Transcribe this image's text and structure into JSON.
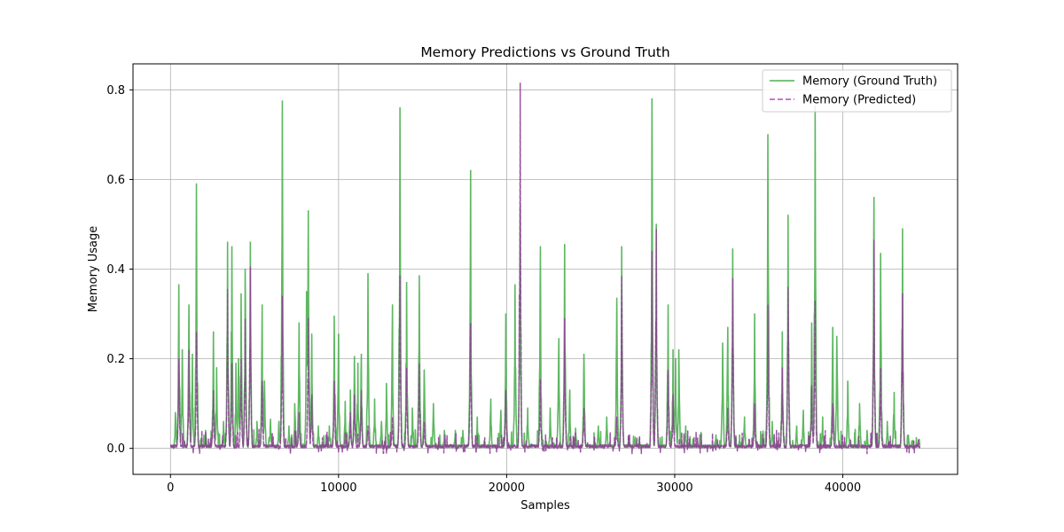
{
  "chart_data": {
    "type": "line",
    "title": "Memory Predictions vs Ground Truth",
    "xlabel": "Samples",
    "ylabel": "Memory Usage",
    "xlim": [
      -2230,
      46830
    ],
    "ylim": [
      -0.058,
      0.858
    ],
    "xticks": [
      0,
      10000,
      20000,
      30000,
      40000
    ],
    "xtick_labels": [
      "0",
      "10000",
      "20000",
      "30000",
      "40000"
    ],
    "yticks": [
      0.0,
      0.2,
      0.4,
      0.6,
      0.8
    ],
    "ytick_labels": [
      "0.0",
      "0.2",
      "0.4",
      "0.6",
      "0.8"
    ],
    "grid": true,
    "legend_position": "top-right",
    "x_range": [
      0,
      44600
    ],
    "series": [
      {
        "name": "Memory (Ground Truth)",
        "color": "#4caf50",
        "style": "solid",
        "peaks": [
          [
            300,
            0.08
          ],
          [
            500,
            0.365
          ],
          [
            700,
            0.22
          ],
          [
            1100,
            0.32
          ],
          [
            1300,
            0.21
          ],
          [
            1550,
            0.59
          ],
          [
            2100,
            0.04
          ],
          [
            2550,
            0.26
          ],
          [
            2750,
            0.18
          ],
          [
            3150,
            0.06
          ],
          [
            3400,
            0.46
          ],
          [
            3650,
            0.45
          ],
          [
            3900,
            0.19
          ],
          [
            4050,
            0.2
          ],
          [
            4200,
            0.345
          ],
          [
            4450,
            0.4
          ],
          [
            4750,
            0.46
          ],
          [
            5150,
            0.06
          ],
          [
            5450,
            0.32
          ],
          [
            5600,
            0.15
          ],
          [
            5950,
            0.065
          ],
          [
            6450,
            0.06
          ],
          [
            6650,
            0.775
          ],
          [
            7050,
            0.05
          ],
          [
            7400,
            0.1
          ],
          [
            7650,
            0.28
          ],
          [
            8100,
            0.35
          ],
          [
            8200,
            0.53
          ],
          [
            8400,
            0.255
          ],
          [
            8800,
            0.05
          ],
          [
            9450,
            0.05
          ],
          [
            9750,
            0.295
          ],
          [
            10000,
            0.255
          ],
          [
            10400,
            0.105
          ],
          [
            10700,
            0.13
          ],
          [
            10950,
            0.205
          ],
          [
            11150,
            0.19
          ],
          [
            11350,
            0.21
          ],
          [
            11750,
            0.39
          ],
          [
            12150,
            0.11
          ],
          [
            12550,
            0.06
          ],
          [
            12850,
            0.145
          ],
          [
            13200,
            0.32
          ],
          [
            13650,
            0.76
          ],
          [
            14050,
            0.37
          ],
          [
            14400,
            0.09
          ],
          [
            14800,
            0.385
          ],
          [
            15100,
            0.175
          ],
          [
            15650,
            0.1
          ],
          [
            16300,
            0.04
          ],
          [
            16950,
            0.04
          ],
          [
            17400,
            0.04
          ],
          [
            17850,
            0.62
          ],
          [
            18250,
            0.07
          ],
          [
            19050,
            0.11
          ],
          [
            19650,
            0.085
          ],
          [
            19950,
            0.3
          ],
          [
            20500,
            0.365
          ],
          [
            20800,
            0.54
          ],
          [
            21250,
            0.09
          ],
          [
            22000,
            0.45
          ],
          [
            22600,
            0.09
          ],
          [
            23100,
            0.245
          ],
          [
            23450,
            0.455
          ],
          [
            23750,
            0.13
          ],
          [
            24100,
            0.045
          ],
          [
            24600,
            0.21
          ],
          [
            25450,
            0.05
          ],
          [
            25950,
            0.07
          ],
          [
            26550,
            0.335
          ],
          [
            26850,
            0.45
          ],
          [
            27650,
            0.025
          ],
          [
            28650,
            0.78
          ],
          [
            28900,
            0.5
          ],
          [
            29600,
            0.32
          ],
          [
            29900,
            0.22
          ],
          [
            30050,
            0.2
          ],
          [
            30250,
            0.22
          ],
          [
            30650,
            0.05
          ],
          [
            31500,
            0.03
          ],
          [
            32450,
            0.03
          ],
          [
            32850,
            0.235
          ],
          [
            33150,
            0.27
          ],
          [
            33450,
            0.445
          ],
          [
            34150,
            0.07
          ],
          [
            34750,
            0.3
          ],
          [
            35550,
            0.7
          ],
          [
            35800,
            0.06
          ],
          [
            36400,
            0.26
          ],
          [
            36750,
            0.52
          ],
          [
            37250,
            0.05
          ],
          [
            37650,
            0.085
          ],
          [
            38150,
            0.28
          ],
          [
            38350,
            0.765
          ],
          [
            38800,
            0.07
          ],
          [
            39400,
            0.27
          ],
          [
            39650,
            0.25
          ],
          [
            40300,
            0.15
          ],
          [
            41000,
            0.1
          ],
          [
            41450,
            0.04
          ],
          [
            41850,
            0.56
          ],
          [
            42250,
            0.435
          ],
          [
            42650,
            0.06
          ],
          [
            43050,
            0.125
          ],
          [
            43550,
            0.49
          ],
          [
            43900,
            0.03
          ],
          [
            44550,
            0.02
          ]
        ]
      },
      {
        "name": "Memory (Predicted)",
        "color": "#b24fbf",
        "style": "dashed",
        "peaks": [
          [
            500,
            0.2
          ],
          [
            1100,
            0.22
          ],
          [
            1550,
            0.26
          ],
          [
            2550,
            0.13
          ],
          [
            3400,
            0.355
          ],
          [
            3650,
            0.19
          ],
          [
            4200,
            0.2
          ],
          [
            4450,
            0.29
          ],
          [
            4750,
            0.405
          ],
          [
            5450,
            0.15
          ],
          [
            6650,
            0.34
          ],
          [
            7650,
            0.08
          ],
          [
            8200,
            0.29
          ],
          [
            8400,
            0.12
          ],
          [
            9750,
            0.15
          ],
          [
            10700,
            0.08
          ],
          [
            10950,
            0.12
          ],
          [
            11350,
            0.13
          ],
          [
            11750,
            0.05
          ],
          [
            13200,
            0.07
          ],
          [
            13650,
            0.385
          ],
          [
            14050,
            0.18
          ],
          [
            14800,
            0.19
          ],
          [
            15100,
            0.06
          ],
          [
            17850,
            0.28
          ],
          [
            19950,
            0.13
          ],
          [
            20800,
            0.815
          ],
          [
            22000,
            0.155
          ],
          [
            23450,
            0.29
          ],
          [
            24600,
            0.09
          ],
          [
            26550,
            0.07
          ],
          [
            26850,
            0.385
          ],
          [
            28650,
            0.44
          ],
          [
            28900,
            0.49
          ],
          [
            29600,
            0.175
          ],
          [
            29900,
            0.12
          ],
          [
            33150,
            0.09
          ],
          [
            33450,
            0.38
          ],
          [
            34750,
            0.1
          ],
          [
            35550,
            0.32
          ],
          [
            36400,
            0.18
          ],
          [
            36750,
            0.36
          ],
          [
            38150,
            0.14
          ],
          [
            38350,
            0.33
          ],
          [
            39400,
            0.1
          ],
          [
            41850,
            0.465
          ],
          [
            42250,
            0.18
          ],
          [
            43550,
            0.345
          ]
        ]
      }
    ]
  }
}
